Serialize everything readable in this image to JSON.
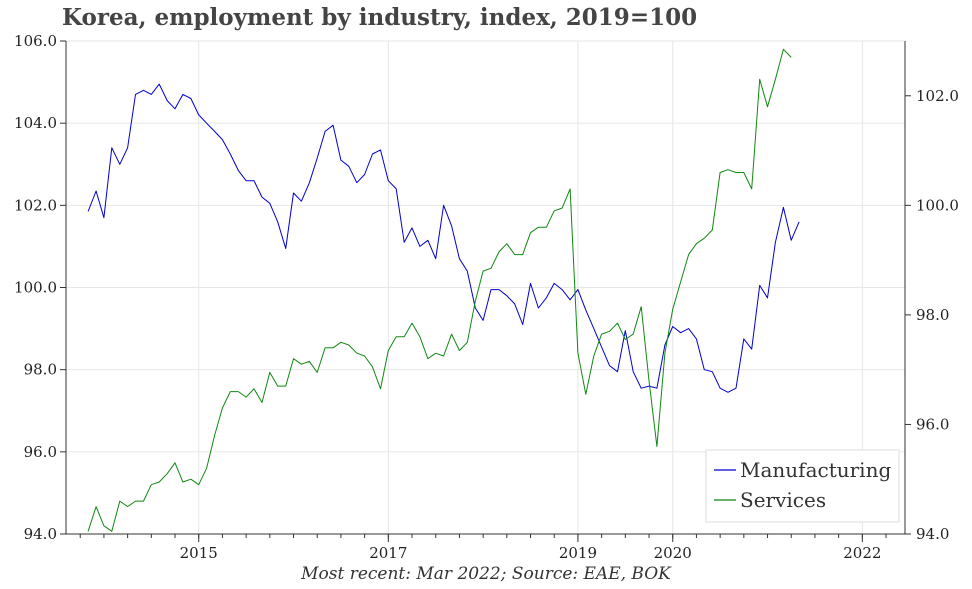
{
  "chart_data": {
    "type": "line",
    "title": "Korea, employment by industry, index, 2019=100",
    "caption": "Most recent: Mar 2022; Source: EAE, BOK",
    "xlim": [
      2013.6,
      2022.45
    ],
    "x_ticks": [
      2015,
      2017,
      2019,
      2020,
      2022
    ],
    "x_tick_labels": [
      "2015",
      "2017",
      "2019",
      "2020",
      "2022"
    ],
    "y_left": {
      "lim": [
        94,
        106
      ],
      "ticks": [
        94,
        96,
        98,
        100,
        102,
        104,
        106
      ],
      "tick_labels": [
        "94.0",
        "96.0",
        "98.0",
        "100.0",
        "102.0",
        "104.0",
        "106.0"
      ]
    },
    "y_right": {
      "lim": [
        94,
        103
      ],
      "ticks": [
        94,
        96,
        98,
        100,
        102
      ],
      "tick_labels": [
        "94.0",
        "96.0",
        "98.0",
        "100.0",
        "102.0"
      ]
    },
    "grid": true,
    "legend_position": "bottom-right",
    "series": [
      {
        "name": "Manufacturing",
        "axis": "left",
        "color": "#0000cc",
        "points": [
          [
            2013.833,
            101.85
          ],
          [
            2013.917,
            102.35
          ],
          [
            2014.0,
            101.7
          ],
          [
            2014.083,
            103.4
          ],
          [
            2014.167,
            103.0
          ],
          [
            2014.25,
            103.4
          ],
          [
            2014.333,
            104.7
          ],
          [
            2014.417,
            104.8
          ],
          [
            2014.5,
            104.7
          ],
          [
            2014.583,
            104.95
          ],
          [
            2014.667,
            104.55
          ],
          [
            2014.75,
            104.35
          ],
          [
            2014.833,
            104.7
          ],
          [
            2014.917,
            104.6
          ],
          [
            2015.0,
            104.2
          ],
          [
            2015.083,
            104.0
          ],
          [
            2015.167,
            103.8
          ],
          [
            2015.25,
            103.6
          ],
          [
            2015.333,
            103.25
          ],
          [
            2015.417,
            102.85
          ],
          [
            2015.5,
            102.6
          ],
          [
            2015.583,
            102.6
          ],
          [
            2015.667,
            102.2
          ],
          [
            2015.75,
            102.05
          ],
          [
            2015.833,
            101.6
          ],
          [
            2015.917,
            100.95
          ],
          [
            2016.0,
            102.3
          ],
          [
            2016.083,
            102.1
          ],
          [
            2016.167,
            102.55
          ],
          [
            2016.25,
            103.15
          ],
          [
            2016.333,
            103.8
          ],
          [
            2016.417,
            103.95
          ],
          [
            2016.5,
            103.1
          ],
          [
            2016.583,
            102.95
          ],
          [
            2016.667,
            102.55
          ],
          [
            2016.75,
            102.75
          ],
          [
            2016.833,
            103.25
          ],
          [
            2016.917,
            103.35
          ],
          [
            2017.0,
            102.6
          ],
          [
            2017.083,
            102.4
          ],
          [
            2017.167,
            101.1
          ],
          [
            2017.25,
            101.45
          ],
          [
            2017.333,
            101.0
          ],
          [
            2017.417,
            101.15
          ],
          [
            2017.5,
            100.7
          ],
          [
            2017.583,
            102.0
          ],
          [
            2017.667,
            101.5
          ],
          [
            2017.75,
            100.7
          ],
          [
            2017.833,
            100.4
          ],
          [
            2017.917,
            99.5
          ],
          [
            2018.0,
            99.2
          ],
          [
            2018.083,
            99.95
          ],
          [
            2018.167,
            99.95
          ],
          [
            2018.25,
            99.8
          ],
          [
            2018.333,
            99.6
          ],
          [
            2018.417,
            99.1
          ],
          [
            2018.5,
            100.1
          ],
          [
            2018.583,
            99.5
          ],
          [
            2018.667,
            99.75
          ],
          [
            2018.75,
            100.1
          ],
          [
            2018.833,
            99.95
          ],
          [
            2018.917,
            99.7
          ],
          [
            2019.0,
            99.95
          ],
          [
            2019.083,
            99.45
          ],
          [
            2019.167,
            99.0
          ],
          [
            2019.25,
            98.55
          ],
          [
            2019.333,
            98.1
          ],
          [
            2019.417,
            97.95
          ],
          [
            2019.5,
            98.95
          ],
          [
            2019.583,
            97.95
          ],
          [
            2019.667,
            97.55
          ],
          [
            2019.75,
            97.6
          ],
          [
            2019.833,
            97.55
          ],
          [
            2019.917,
            98.6
          ],
          [
            2020.0,
            99.05
          ],
          [
            2020.083,
            98.9
          ],
          [
            2020.167,
            99.0
          ],
          [
            2020.25,
            98.75
          ],
          [
            2020.333,
            98.0
          ],
          [
            2020.417,
            97.95
          ],
          [
            2020.5,
            97.55
          ],
          [
            2020.583,
            97.45
          ],
          [
            2020.667,
            97.55
          ],
          [
            2020.75,
            98.75
          ],
          [
            2020.833,
            98.5
          ],
          [
            2020.917,
            100.05
          ],
          [
            2021.0,
            99.75
          ],
          [
            2021.083,
            101.1
          ],
          [
            2021.167,
            101.95
          ],
          [
            2021.25,
            101.15
          ],
          [
            2021.333,
            101.6
          ]
        ]
      },
      {
        "name": "Services",
        "axis": "right",
        "color": "#118811",
        "points": [
          [
            2013.833,
            94.05
          ],
          [
            2013.917,
            94.5
          ],
          [
            2014.0,
            94.15
          ],
          [
            2014.083,
            94.05
          ],
          [
            2014.167,
            94.6
          ],
          [
            2014.25,
            94.5
          ],
          [
            2014.333,
            94.6
          ],
          [
            2014.417,
            94.6
          ],
          [
            2014.5,
            94.9
          ],
          [
            2014.583,
            94.95
          ],
          [
            2014.667,
            95.1
          ],
          [
            2014.75,
            95.3
          ],
          [
            2014.833,
            94.95
          ],
          [
            2014.917,
            95.0
          ],
          [
            2015.0,
            94.9
          ],
          [
            2015.083,
            95.2
          ],
          [
            2015.167,
            95.8
          ],
          [
            2015.25,
            96.3
          ],
          [
            2015.333,
            96.6
          ],
          [
            2015.417,
            96.6
          ],
          [
            2015.5,
            96.5
          ],
          [
            2015.583,
            96.65
          ],
          [
            2015.667,
            96.4
          ],
          [
            2015.75,
            96.95
          ],
          [
            2015.833,
            96.7
          ],
          [
            2015.917,
            96.7
          ],
          [
            2016.0,
            97.2
          ],
          [
            2016.083,
            97.1
          ],
          [
            2016.167,
            97.15
          ],
          [
            2016.25,
            96.95
          ],
          [
            2016.333,
            97.4
          ],
          [
            2016.417,
            97.4
          ],
          [
            2016.5,
            97.5
          ],
          [
            2016.583,
            97.45
          ],
          [
            2016.667,
            97.3
          ],
          [
            2016.75,
            97.25
          ],
          [
            2016.833,
            97.05
          ],
          [
            2016.917,
            96.65
          ],
          [
            2017.0,
            97.35
          ],
          [
            2017.083,
            97.6
          ],
          [
            2017.167,
            97.6
          ],
          [
            2017.25,
            97.85
          ],
          [
            2017.333,
            97.6
          ],
          [
            2017.417,
            97.2
          ],
          [
            2017.5,
            97.3
          ],
          [
            2017.583,
            97.25
          ],
          [
            2017.667,
            97.65
          ],
          [
            2017.75,
            97.35
          ],
          [
            2017.833,
            97.5
          ],
          [
            2017.917,
            98.25
          ],
          [
            2018.0,
            98.8
          ],
          [
            2018.083,
            98.85
          ],
          [
            2018.167,
            99.15
          ],
          [
            2018.25,
            99.3
          ],
          [
            2018.333,
            99.1
          ],
          [
            2018.417,
            99.1
          ],
          [
            2018.5,
            99.5
          ],
          [
            2018.583,
            99.6
          ],
          [
            2018.667,
            99.6
          ],
          [
            2018.75,
            99.9
          ],
          [
            2018.833,
            99.95
          ],
          [
            2018.917,
            100.3
          ],
          [
            2019.0,
            97.3
          ],
          [
            2019.083,
            96.55
          ],
          [
            2019.167,
            97.25
          ],
          [
            2019.25,
            97.65
          ],
          [
            2019.333,
            97.7
          ],
          [
            2019.417,
            97.85
          ],
          [
            2019.5,
            97.55
          ],
          [
            2019.583,
            97.65
          ],
          [
            2019.667,
            98.15
          ],
          [
            2019.75,
            96.8
          ],
          [
            2019.833,
            95.6
          ],
          [
            2019.917,
            97.3
          ],
          [
            2020.0,
            98.1
          ],
          [
            2020.083,
            98.6
          ],
          [
            2020.167,
            99.1
          ],
          [
            2020.25,
            99.3
          ],
          [
            2020.333,
            99.4
          ],
          [
            2020.417,
            99.55
          ],
          [
            2020.5,
            100.6
          ],
          [
            2020.583,
            100.65
          ],
          [
            2020.667,
            100.6
          ],
          [
            2020.75,
            100.6
          ],
          [
            2020.833,
            100.3
          ],
          [
            2020.917,
            102.3
          ],
          [
            2021.0,
            101.8
          ],
          [
            2021.083,
            102.3
          ],
          [
            2021.167,
            102.85
          ],
          [
            2021.25,
            102.7
          ]
        ]
      }
    ]
  }
}
